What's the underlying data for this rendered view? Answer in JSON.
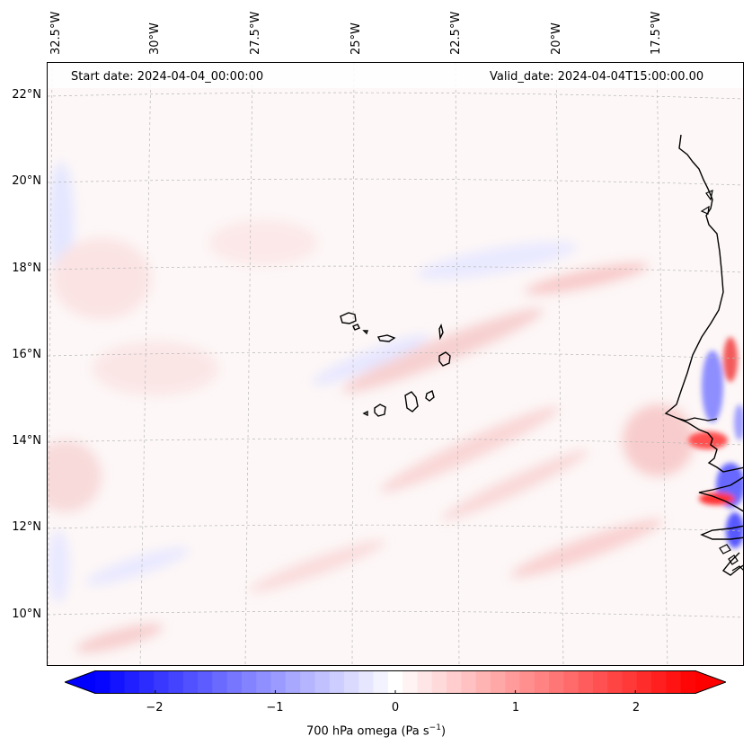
{
  "header": {
    "start_date": "Start date: 2024-04-04_00:00:00",
    "valid_date": "Valid_date: 2024-04-04T15:00:00.00"
  },
  "map": {
    "longitude_labels": [
      "32.5°W",
      "30°W",
      "27.5°W",
      "25°W",
      "22.5°W",
      "20°W",
      "17.5°W"
    ],
    "latitude_labels": [
      "22°N",
      "20°N",
      "18°N",
      "16°N",
      "14°N",
      "12°N",
      "10°N"
    ],
    "field": "700 hPa omega",
    "colormap": "bwr",
    "colors": {
      "negative": "#0000ff",
      "zero": "#ffffff",
      "positive": "#ff0000",
      "coast": "#000000",
      "grid": "#b0b0b0"
    }
  },
  "colorbar": {
    "ticks": [
      "−2",
      "−1",
      "0",
      "1",
      "2"
    ],
    "tick_values": [
      -2,
      -1,
      0,
      1,
      2
    ],
    "range": [
      -2.5,
      2.5
    ],
    "levels": 41,
    "extend": "both",
    "label_main": "700 hPa omega (Pa s",
    "label_sup": "−1",
    "label_end": ")"
  }
}
